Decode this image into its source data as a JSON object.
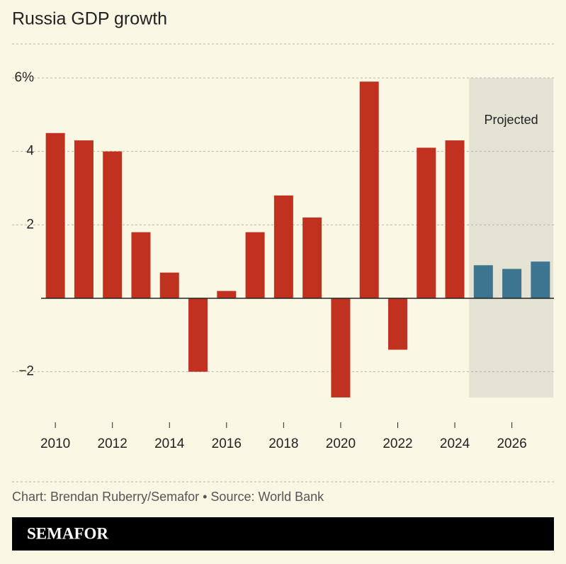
{
  "chart_data": {
    "type": "bar",
    "title": "Russia GDP growth",
    "categories": [
      "2010",
      null,
      "2012",
      null,
      "2014",
      null,
      "2016",
      null,
      "2018",
      null,
      "2020",
      null,
      "2022",
      null,
      "2024",
      null,
      "2026",
      null
    ],
    "series": [
      {
        "color": "#c0321f",
        "values": [
          4.5,
          4.3,
          4.0,
          1.8,
          0.7,
          -2.0,
          0.2,
          1.8,
          2.8,
          2.2,
          -2.7,
          5.9,
          -1.4,
          4.1,
          4.3,
          null,
          null,
          null
        ]
      },
      {
        "name": "Projected",
        "color": "#3d7490",
        "values": [
          null,
          null,
          null,
          null,
          null,
          null,
          null,
          null,
          null,
          null,
          null,
          null,
          null,
          null,
          null,
          0.9,
          0.8,
          1.0
        ]
      }
    ],
    "ylim": [
      -3,
      6
    ],
    "yticks": [
      {
        "value": -2,
        "label": "−2"
      },
      2,
      4,
      {
        "value": 6,
        "label": "6%"
      }
    ],
    "grid": true,
    "source": "Chart: Brendan Ruberry/Semafor • Source: World Bank",
    "brand": "SEMAFOR"
  }
}
